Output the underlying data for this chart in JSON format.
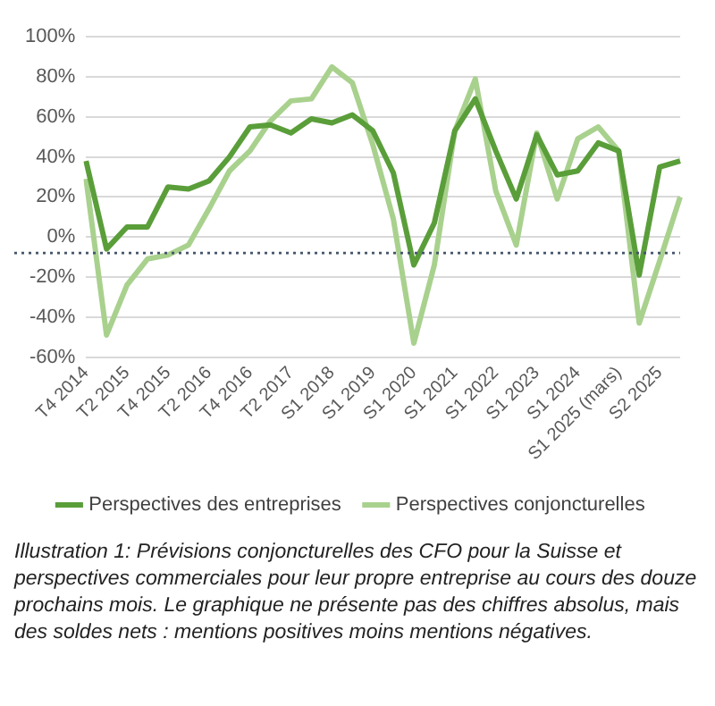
{
  "chart_data": {
    "type": "line",
    "categories": [
      "T4 2014",
      null,
      "T2 2015",
      null,
      "T4 2015",
      null,
      "T2 2016",
      null,
      "T4 2016",
      null,
      "T2 2017",
      null,
      "S1 2018",
      null,
      "S1 2019",
      null,
      "S1 2020",
      null,
      "S1 2021",
      null,
      "S1 2022",
      null,
      "S1 2023",
      null,
      "S1 2024",
      null,
      "S1 2025 (mars)",
      null,
      "S2 2025",
      null
    ],
    "series": [
      {
        "name": "Perspectives des entreprises",
        "color": "#5a9e3a",
        "values": [
          38,
          -6,
          5,
          5,
          25,
          24,
          28,
          40,
          55,
          56,
          52,
          59,
          57,
          61,
          53,
          32,
          -14,
          7,
          53,
          69,
          43,
          19,
          51,
          31,
          33,
          47,
          43,
          -19,
          35,
          38
        ]
      },
      {
        "name": "Perspectives conjoncturelles",
        "color": "#a9d18e",
        "values": [
          29,
          -49,
          -24,
          -11,
          -9,
          -4,
          14,
          33,
          43,
          58,
          68,
          69,
          85,
          77,
          46,
          9,
          -53,
          -14,
          53,
          79,
          23,
          -4,
          52,
          19,
          49,
          55,
          43,
          -43,
          -12,
          20
        ]
      }
    ],
    "ylim": [
      -60,
      100
    ],
    "yticks": [
      {
        "value": -60,
        "label": "-60%"
      },
      {
        "value": -40,
        "label": "-40%"
      },
      {
        "value": -20,
        "label": "-20%"
      },
      {
        "value": 0,
        "label": "0%"
      },
      {
        "value": 20,
        "label": "20%"
      },
      {
        "value": 40,
        "label": "40%"
      },
      {
        "value": 60,
        "label": "60%"
      },
      {
        "value": 80,
        "label": "80%"
      },
      {
        "value": 100,
        "label": "100%"
      }
    ],
    "grid": "y",
    "legend": "bottom",
    "marker": "none",
    "line_style": "solid",
    "ref_lines": [
      {
        "axis": "y",
        "value": -8,
        "color": "#44546a",
        "line_style": "dotted"
      }
    ],
    "annotations": [
      "Illustration 1: Prévisions conjoncturelles des CFO pour la Suisse et perspectives commerciales pour leur propre entreprise au cours des douze prochains mois. Le graphique ne présente pas des chiffres absolus, mais des soldes nets : mentions positives moins mentions négatives."
    ]
  }
}
